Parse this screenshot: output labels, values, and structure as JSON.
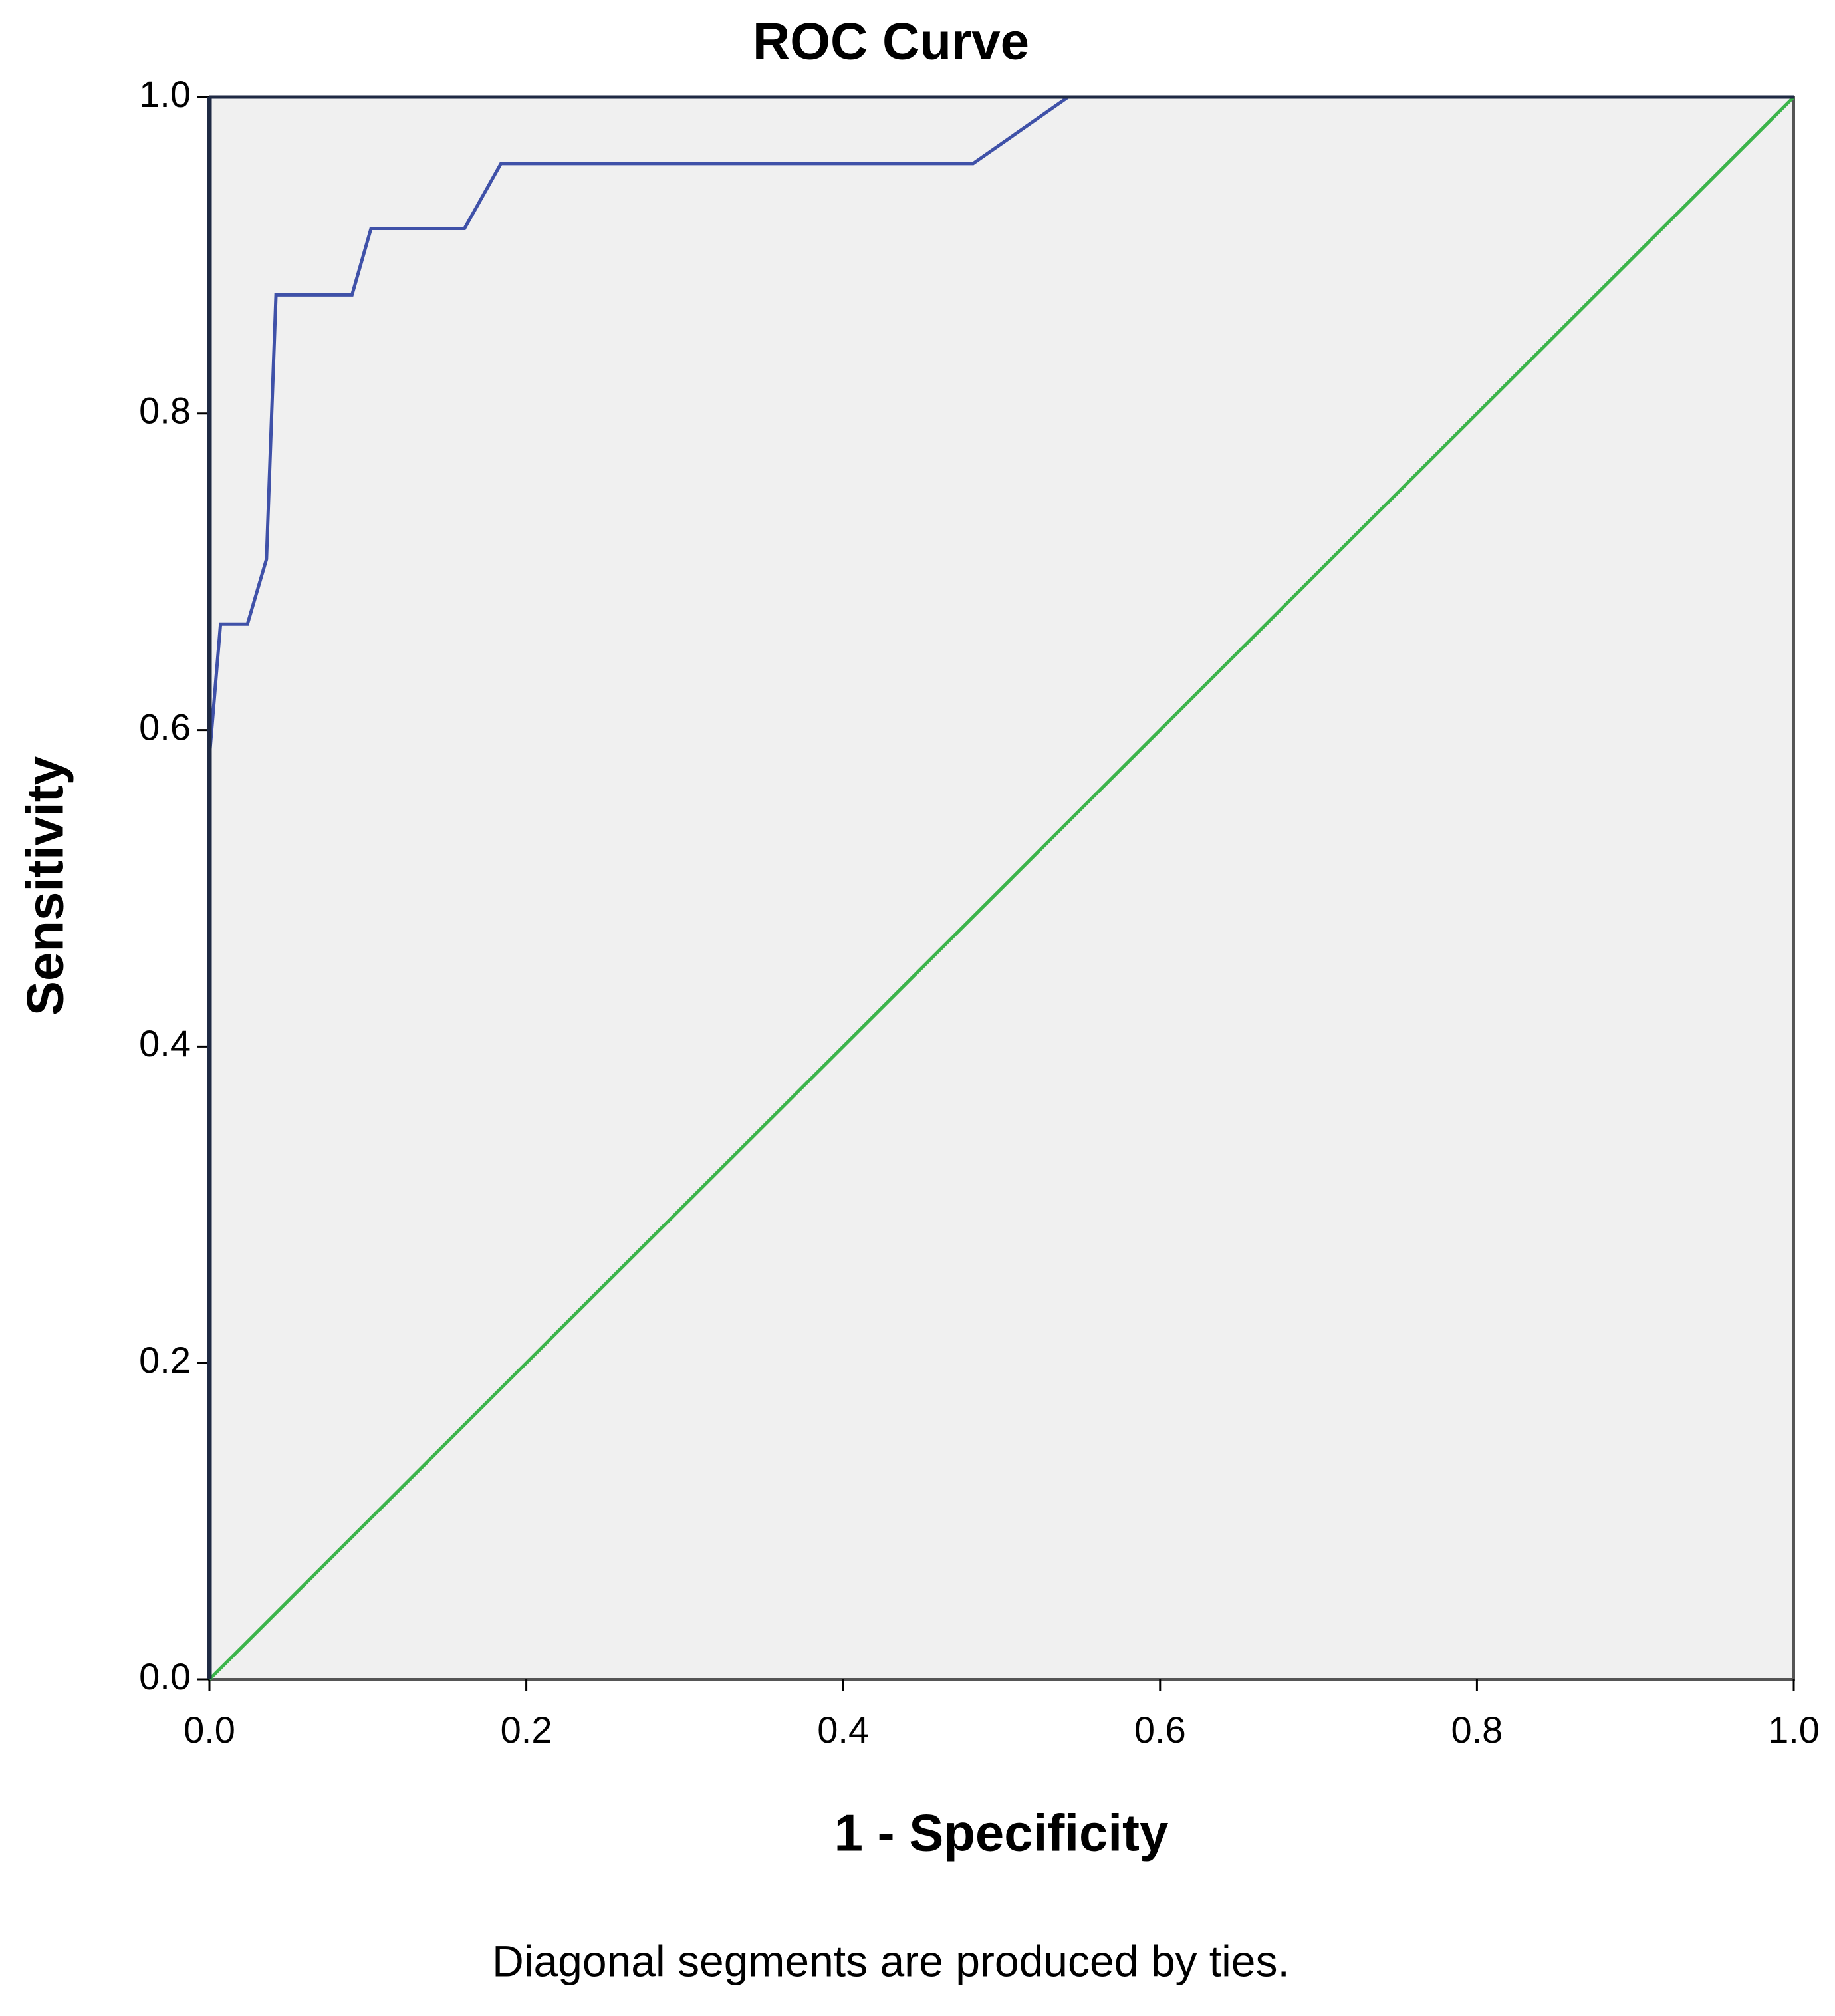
{
  "chart_data": {
    "type": "line",
    "title": "ROC Curve",
    "x_label": "1 - Specificity",
    "y_label": "Sensitivity",
    "footnote": "Diagonal segments are produced by ties.",
    "xlim": [
      0,
      1
    ],
    "ylim": [
      0,
      1
    ],
    "xticks": [
      {
        "value": 0,
        "label": "0.0"
      },
      0.2,
      0.4,
      0.6,
      0.8,
      {
        "value": 1,
        "label": "1.0"
      }
    ],
    "yticks": [
      {
        "value": 0,
        "label": "0.0"
      },
      0.2,
      0.4,
      0.6,
      0.8,
      {
        "value": 1,
        "label": "1.0"
      }
    ],
    "background": "#f0f0f0",
    "series": [
      {
        "color": "#3f51a8",
        "x": [
          0,
          0,
          0.007,
          0.024,
          0.036,
          0.039,
          0.042,
          0.09,
          0.102,
          0.161,
          0.184,
          0.482,
          0.542,
          1
        ],
        "values": [
          0,
          0.583,
          0.667,
          0.667,
          0.708,
          0.792,
          0.875,
          0.875,
          0.917,
          0.917,
          0.958,
          0.958,
          1,
          1
        ]
      },
      {
        "color": "#3cb44b",
        "x": [
          0,
          1
        ],
        "values": [
          0,
          1
        ]
      }
    ]
  }
}
